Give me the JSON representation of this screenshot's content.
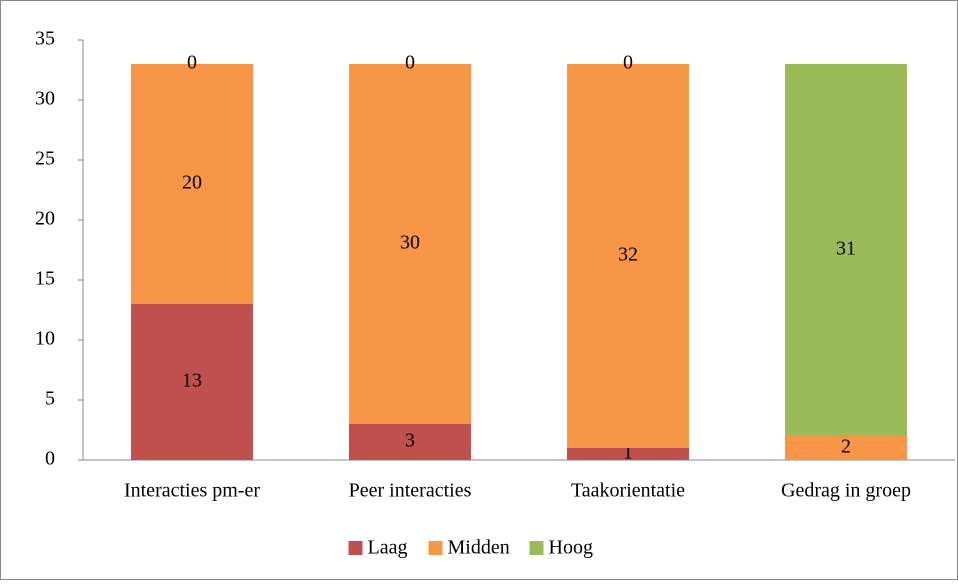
{
  "chart_data": {
    "type": "stacked_bar",
    "categories": [
      "Interacties pm-er",
      "Peer interacties",
      "Taakorientatie",
      "Gedrag in groep"
    ],
    "series": [
      {
        "name": "Laag",
        "color": "#c0504d",
        "values": [
          13,
          3,
          1,
          null
        ]
      },
      {
        "name": "Midden",
        "color": "#f79646",
        "values": [
          20,
          30,
          32,
          2
        ]
      },
      {
        "name": "Hoog",
        "color": "#9bbb59",
        "values": [
          0,
          0,
          0,
          31
        ]
      }
    ],
    "ylim": [
      0,
      35
    ],
    "yticks": [
      0,
      5,
      10,
      15,
      20,
      25,
      30,
      35
    ],
    "grid": false,
    "legend": "bottom"
  }
}
